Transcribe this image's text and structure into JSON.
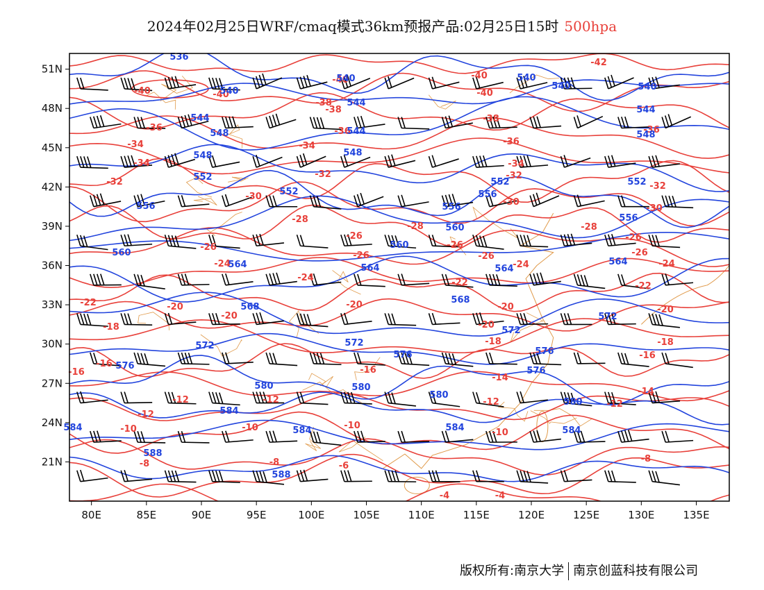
{
  "title": {
    "main": "2024年02月25日WRF/cmaq模式36km预报产品:02月25日15时",
    "level": "500hpa"
  },
  "colors": {
    "temperature": "#e8403a",
    "height": "#2244dd",
    "coast": "#e09a4a",
    "wind": "#000000",
    "level_text": "#e8403a"
  },
  "map": {
    "lon_ticks": [
      "80E",
      "85E",
      "90E",
      "95E",
      "100E",
      "105E",
      "110E",
      "115E",
      "120E",
      "125E",
      "130E",
      "135E"
    ],
    "lat_ticks": [
      "51N",
      "48N",
      "45N",
      "42N",
      "39N",
      "36N",
      "33N",
      "30N",
      "27N",
      "24N",
      "21N"
    ],
    "lon_range": [
      78,
      138
    ],
    "lat_range": [
      18,
      52.2
    ]
  },
  "temperature_labels": [
    "-42",
    "-40",
    "-38",
    "-36",
    "-34",
    "-32",
    "-30",
    "-28",
    "-26",
    "-24",
    "-22",
    "-20",
    "-18",
    "-16",
    "-14",
    "-12",
    "-10",
    "-8",
    "-6",
    "-4"
  ],
  "height_labels": [
    "536",
    "540",
    "544",
    "548",
    "552",
    "556",
    "560",
    "564",
    "568",
    "572",
    "576",
    "580",
    "584",
    "588"
  ],
  "copyright": {
    "left": "版权所有:南京大学",
    "right": "南京创蓝科技有限公司"
  }
}
